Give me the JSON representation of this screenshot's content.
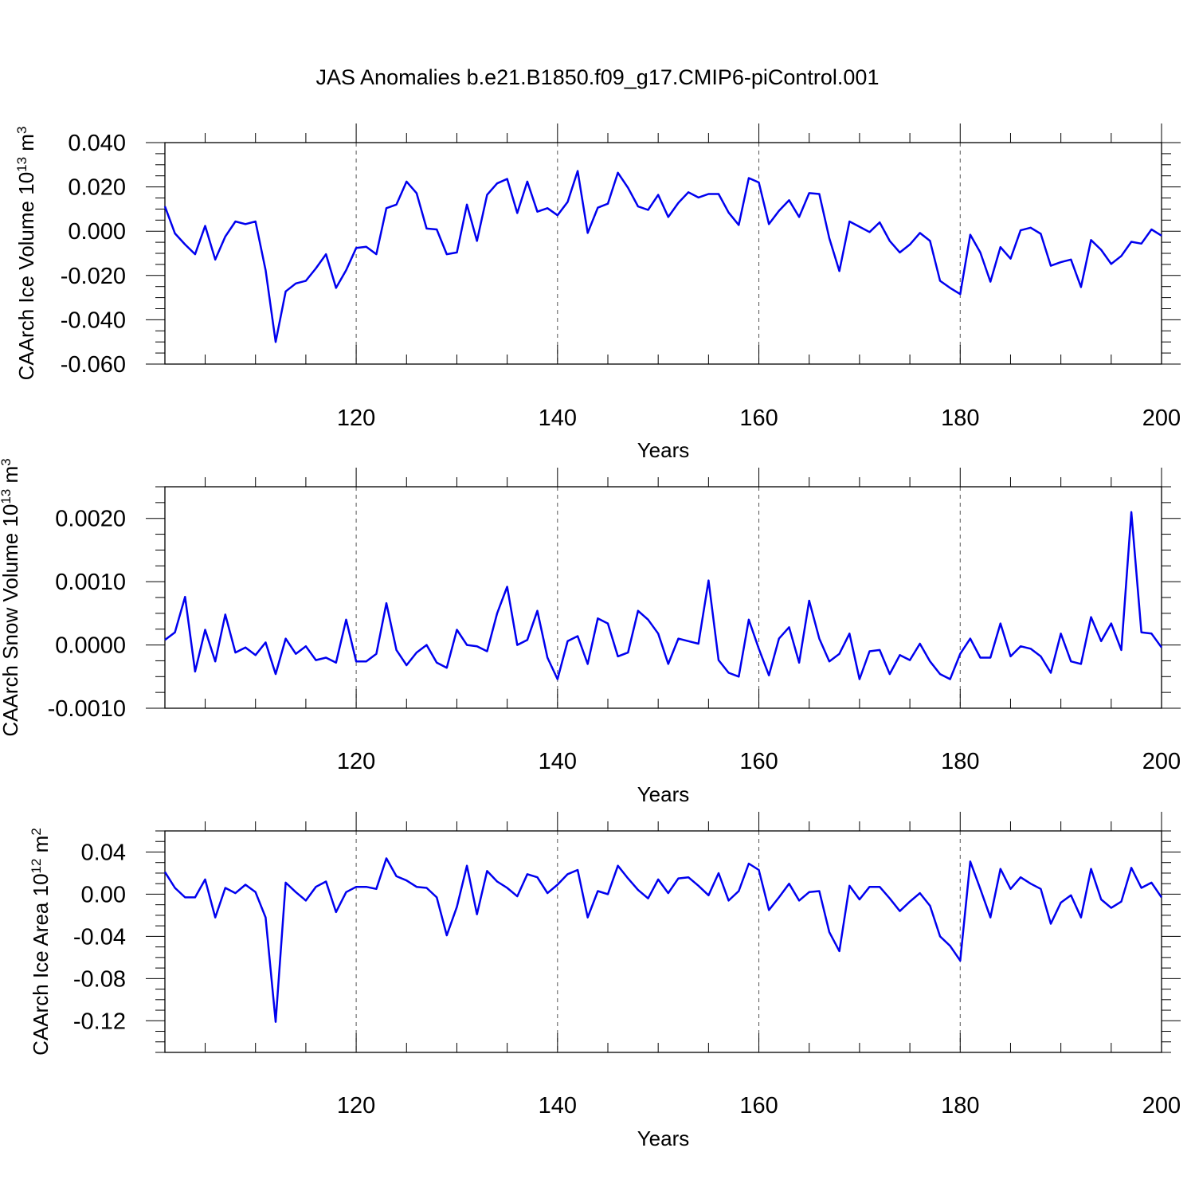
{
  "title": "JAS Anomalies b.e21.B1850.f09_g17.CMIP6-piControl.001",
  "colors": {
    "line": "#0000ee",
    "axis": "#000000",
    "grid": "#555555"
  },
  "chart_data": [
    {
      "type": "line",
      "ylabel": "CAArch Ice Volume 10",
      "ylabel_exp": "13",
      "ylabel_unit": " m",
      "ylabel_unit_exp": "3",
      "xlabel": "Years",
      "xlim": [
        101,
        200
      ],
      "ylim": [
        -0.06,
        0.04
      ],
      "yticks": [
        -0.06,
        -0.04,
        -0.02,
        0.0,
        0.02,
        0.04
      ],
      "ytick_labels": [
        "-0.060",
        "-0.040",
        "-0.020",
        "0.000",
        "0.020",
        "0.040"
      ],
      "yminor_step": 0.005,
      "xticks": [
        120,
        140,
        160,
        180,
        200
      ],
      "xtick_labels": [
        "120",
        "140",
        "160",
        "180",
        "200"
      ],
      "xminor_step": 5,
      "grid_x": [
        120,
        140,
        160,
        180
      ],
      "x_start": 101,
      "values": [
        0.0112,
        -0.001,
        -0.006,
        -0.0104,
        0.0024,
        -0.0128,
        -0.0024,
        0.0044,
        0.0032,
        0.0044,
        -0.0176,
        -0.05,
        -0.0272,
        -0.0236,
        -0.0224,
        -0.0168,
        -0.0104,
        -0.0256,
        -0.0176,
        -0.0076,
        -0.007,
        -0.0104,
        0.0104,
        0.012,
        0.0224,
        0.0172,
        0.0012,
        0.0008,
        -0.0104,
        -0.0096,
        0.012,
        -0.0044,
        0.0164,
        0.0216,
        0.0236,
        0.0082,
        0.0224,
        0.0088,
        0.0104,
        0.0072,
        0.0132,
        0.0272,
        -0.0008,
        0.0106,
        0.0124,
        0.0264,
        0.0196,
        0.0112,
        0.0096,
        0.0164,
        0.0064,
        0.0128,
        0.0176,
        0.0152,
        0.0168,
        0.0168,
        0.0084,
        0.0028,
        0.024,
        0.022,
        0.0032,
        0.0092,
        0.014,
        0.0064,
        0.0172,
        0.0168,
        -0.0032,
        -0.018,
        0.0044,
        0.002,
        -0.0004,
        0.004,
        -0.0044,
        -0.0096,
        -0.006,
        -0.0008,
        -0.0044,
        -0.0224,
        -0.0256,
        -0.0284,
        -0.0016,
        -0.0096,
        -0.0228,
        -0.0072,
        -0.0124,
        0.0004,
        0.0016,
        -0.0012,
        -0.0156,
        -0.014,
        -0.0128,
        -0.0252,
        -0.004,
        -0.0084,
        -0.0148,
        -0.0112,
        -0.0048,
        -0.0056,
        0.0008,
        -0.002
      ]
    },
    {
      "type": "line",
      "ylabel": "CAArch Snow Volume 10",
      "ylabel_exp": "13",
      "ylabel_unit": " m",
      "ylabel_unit_exp": "3",
      "xlabel": "Years",
      "xlim": [
        101,
        200
      ],
      "ylim": [
        -0.001,
        0.0025
      ],
      "yticks": [
        -0.001,
        0.0,
        0.001,
        0.002
      ],
      "ytick_labels": [
        "-0.0010",
        "0.0000",
        "0.0010",
        "0.0020"
      ],
      "yminor_step": 0.00025,
      "xticks": [
        120,
        140,
        160,
        180,
        200
      ],
      "xtick_labels": [
        "120",
        "140",
        "160",
        "180",
        "200"
      ],
      "xminor_step": 5,
      "grid_x": [
        120,
        140,
        160,
        180
      ],
      "x_start": 101,
      "values": [
        8e-05,
        0.0002,
        0.00076,
        -0.00042,
        0.00024,
        -0.00026,
        0.00048,
        -0.00012,
        -4e-05,
        -0.00016,
        4e-05,
        -0.00046,
        0.0001,
        -0.00014,
        -2e-05,
        -0.00024,
        -0.0002,
        -0.00028,
        0.0004,
        -0.00026,
        -0.00026,
        -0.00014,
        0.00066,
        -8e-05,
        -0.00032,
        -0.00012,
        0.0,
        -0.00028,
        -0.00036,
        0.00024,
        0.0,
        -2e-05,
        -0.0001,
        0.0005,
        0.00092,
        0.0,
        8e-05,
        0.00054,
        -0.0002,
        -0.00054,
        6e-05,
        0.00014,
        -0.0003,
        0.00042,
        0.00034,
        -0.00018,
        -0.00012,
        0.00054,
        0.0004,
        0.00018,
        -0.0003,
        0.0001,
        6e-05,
        2e-05,
        0.00102,
        -0.00024,
        -0.00044,
        -0.0005,
        0.0004,
        -6e-05,
        -0.00048,
        0.0001,
        0.00028,
        -0.00028,
        0.0007,
        0.0001,
        -0.00026,
        -0.00014,
        0.00018,
        -0.00054,
        -0.0001,
        -8e-05,
        -0.00046,
        -0.00016,
        -0.00024,
        2e-05,
        -0.00026,
        -0.00046,
        -0.00054,
        -0.00014,
        0.0001,
        -0.0002,
        -0.0002,
        0.00034,
        -0.00018,
        -2e-05,
        -6e-05,
        -0.00018,
        -0.00044,
        0.00018,
        -0.00026,
        -0.0003,
        0.00044,
        6e-05,
        0.00034,
        -8e-05,
        0.0021,
        0.0002,
        0.00018,
        -4e-05
      ]
    },
    {
      "type": "line",
      "ylabel": "CAArch Ice Area 10",
      "ylabel_exp": "12",
      "ylabel_unit": " m",
      "ylabel_unit_exp": "2",
      "xlabel": "Years",
      "xlim": [
        101,
        200
      ],
      "ylim": [
        -0.15,
        0.06
      ],
      "yticks": [
        -0.12,
        -0.08,
        -0.04,
        0.0,
        0.04
      ],
      "ytick_labels": [
        "-0.12",
        "-0.08",
        "-0.04",
        "0.00",
        "0.04"
      ],
      "yminor_step": 0.01,
      "xticks": [
        120,
        140,
        160,
        180,
        200
      ],
      "xtick_labels": [
        "120",
        "140",
        "160",
        "180",
        "200"
      ],
      "xminor_step": 5,
      "grid_x": [
        120,
        140,
        160,
        180
      ],
      "x_start": 101,
      "values": [
        0.021,
        0.006,
        -0.003,
        -0.003,
        0.014,
        -0.022,
        0.006,
        0.001,
        0.009,
        0.002,
        -0.022,
        -0.121,
        0.011,
        0.002,
        -0.006,
        0.007,
        0.012,
        -0.017,
        0.002,
        0.007,
        0.007,
        0.005,
        0.034,
        0.017,
        0.013,
        0.007,
        0.006,
        -0.003,
        -0.039,
        -0.012,
        0.027,
        -0.019,
        0.022,
        0.012,
        0.006,
        -0.002,
        0.019,
        0.016,
        0.001,
        0.009,
        0.019,
        0.023,
        -0.022,
        0.003,
        0.0,
        0.027,
        0.015,
        0.004,
        -0.004,
        0.014,
        0.001,
        0.015,
        0.016,
        0.008,
        -0.001,
        0.02,
        -0.006,
        0.003,
        0.029,
        0.023,
        -0.015,
        -0.003,
        0.01,
        -0.006,
        0.002,
        0.003,
        -0.036,
        -0.054,
        0.008,
        -0.005,
        0.007,
        0.007,
        -0.004,
        -0.016,
        -0.007,
        0.001,
        -0.011,
        -0.04,
        -0.049,
        -0.063,
        0.031,
        0.005,
        -0.022,
        0.024,
        0.005,
        0.016,
        0.01,
        0.005,
        -0.028,
        -0.008,
        -0.001,
        -0.022,
        0.024,
        -0.005,
        -0.013,
        -0.007,
        0.025,
        0.006,
        0.011,
        -0.003
      ]
    }
  ]
}
